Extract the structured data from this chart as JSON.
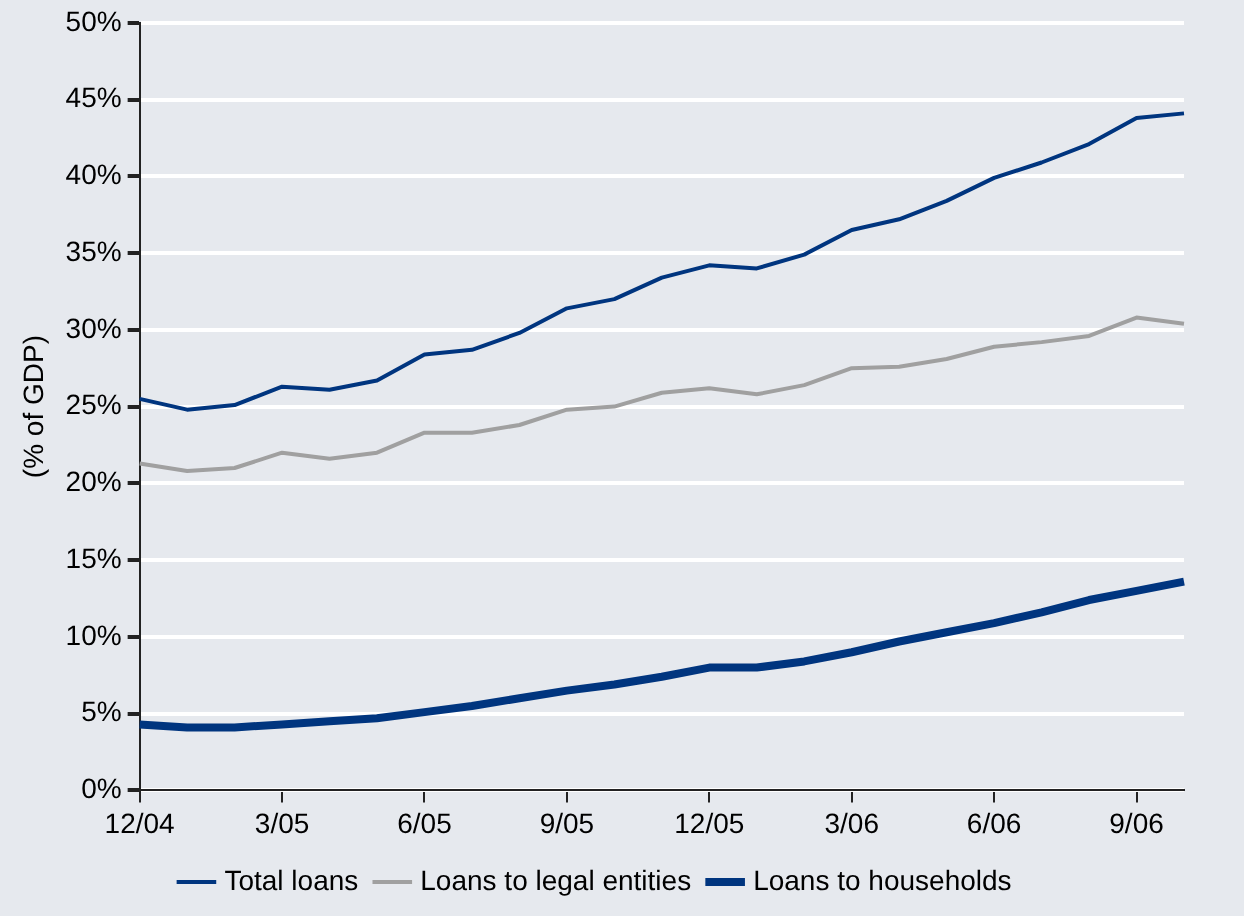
{
  "chart_data": {
    "type": "line",
    "ylabel": "(% of GDP)",
    "categories": [
      "12/04",
      null,
      null,
      "3/05",
      null,
      null,
      "6/05",
      null,
      null,
      "9/05",
      null,
      null,
      "12/05",
      null,
      null,
      "3/06",
      null,
      null,
      "6/06",
      null,
      null,
      "9/06",
      null
    ],
    "series": [
      {
        "name": "Total loans",
        "color": "#00357f",
        "values": [
          25.5,
          24.8,
          25.1,
          26.3,
          26.1,
          26.7,
          28.4,
          28.7,
          29.8,
          31.4,
          32.0,
          33.4,
          34.2,
          34.0,
          34.9,
          36.5,
          37.2,
          38.4,
          39.9,
          40.9,
          42.1,
          43.8,
          44.1
        ]
      },
      {
        "name": "Loans to legal entities",
        "color": "#a0a0a0",
        "values": [
          21.3,
          20.8,
          21.0,
          22.0,
          21.6,
          22.0,
          23.3,
          23.3,
          23.8,
          24.8,
          25.0,
          25.9,
          26.2,
          25.8,
          26.4,
          27.5,
          27.6,
          28.1,
          28.9,
          29.2,
          29.6,
          30.8,
          30.4
        ]
      },
      {
        "name": "Loans to households",
        "color": "#00357f",
        "values": [
          4.3,
          4.1,
          4.1,
          4.3,
          4.5,
          4.7,
          5.1,
          5.5,
          6.0,
          6.5,
          6.9,
          7.4,
          8.0,
          8.0,
          8.4,
          9.0,
          9.7,
          10.3,
          10.9,
          11.6,
          12.4,
          13.0,
          13.6
        ]
      }
    ],
    "ylim": [
      0,
      50
    ],
    "yticks": [
      {
        "value": 0,
        "label": "0%"
      },
      {
        "value": 5,
        "label": "5%"
      },
      {
        "value": 10,
        "label": "10%"
      },
      {
        "value": 15,
        "label": "15%"
      },
      {
        "value": 20,
        "label": "20%"
      },
      {
        "value": 25,
        "label": "25%"
      },
      {
        "value": 30,
        "label": "30%"
      },
      {
        "value": 35,
        "label": "35%"
      },
      {
        "value": 40,
        "label": "40%"
      },
      {
        "value": 45,
        "label": "45%"
      },
      {
        "value": 50,
        "label": "50%"
      }
    ],
    "grid": "y",
    "legend": "bottom",
    "marker": "none",
    "line_style": "solid"
  }
}
